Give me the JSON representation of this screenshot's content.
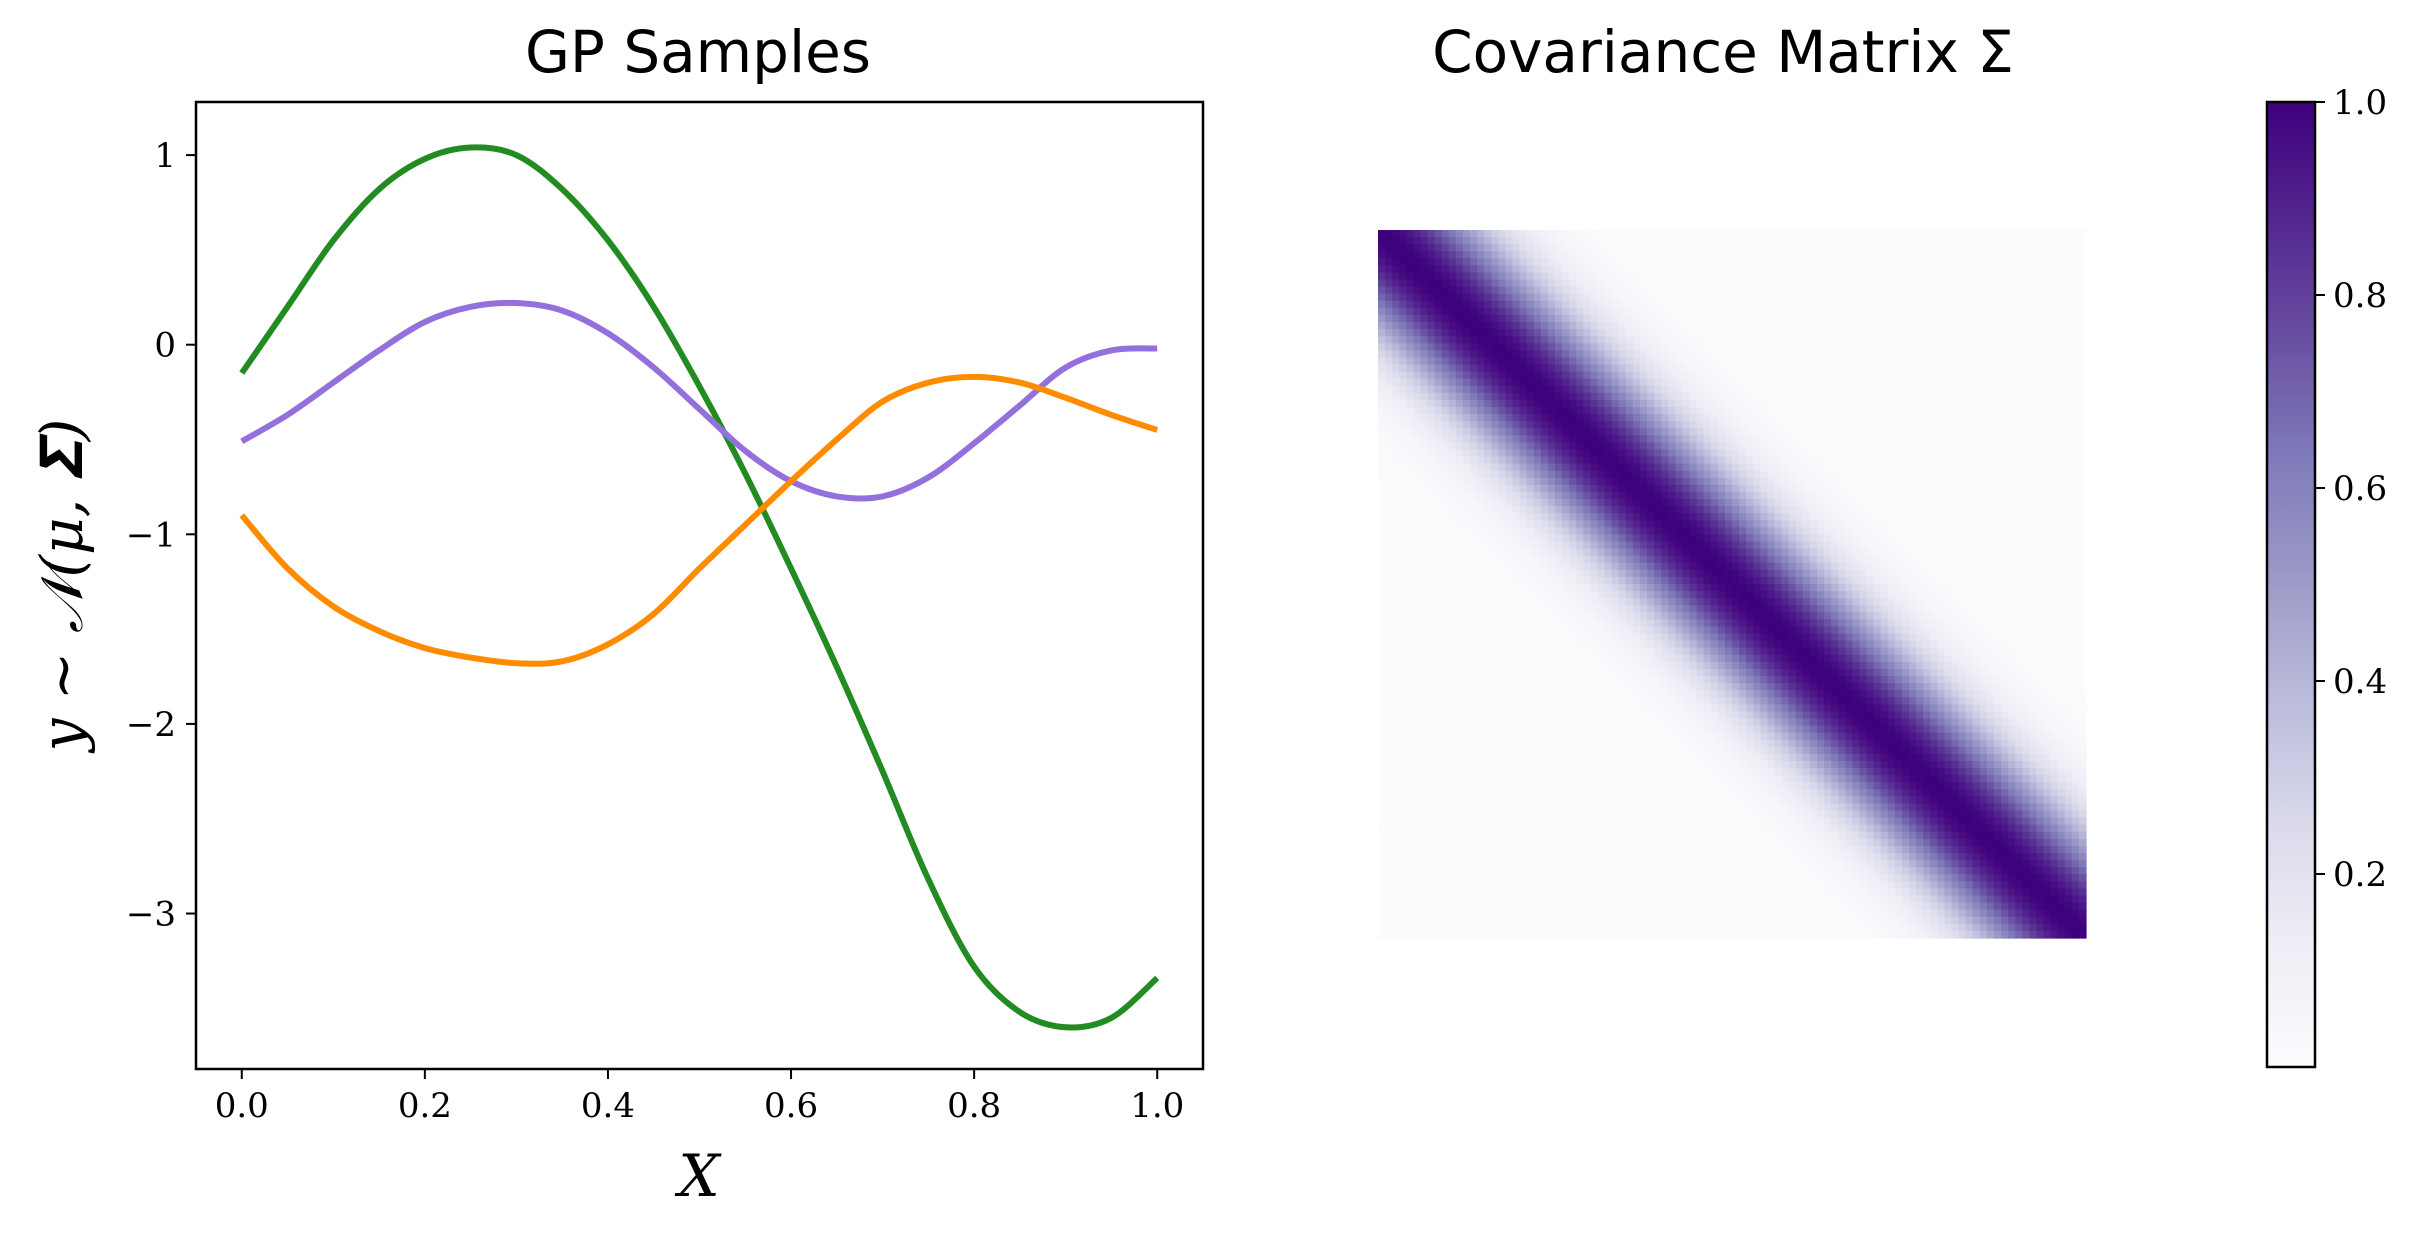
{
  "colors": {
    "sample_1": "#228b22",
    "sample_2": "#9370db",
    "sample_3": "#ff8c00",
    "cmap_low": "#fcfbfd",
    "cmap_high": "#3f007d"
  },
  "chart_data": [
    {
      "type": "line",
      "title": "GP Samples",
      "xlabel": "X",
      "ylabel": "y ∼ 𝒩(μ, 𝚺)",
      "xlim": [
        -0.05,
        1.05
      ],
      "ylim": [
        -3.82,
        1.28
      ],
      "xticks": [
        0.0,
        0.2,
        0.4,
        0.6,
        0.8,
        1.0
      ],
      "xtick_labels": [
        "0.0",
        "0.2",
        "0.4",
        "0.6",
        "0.8",
        "1.0"
      ],
      "yticks": [
        1,
        0,
        -1,
        -2,
        -3
      ],
      "ytick_labels": [
        "1",
        "0",
        "−1",
        "−2",
        "−3"
      ],
      "grid": false,
      "series": [
        {
          "color": "#228b22",
          "x": [
            0.0,
            0.05,
            0.1,
            0.15,
            0.2,
            0.25,
            0.3,
            0.35,
            0.4,
            0.45,
            0.5,
            0.55,
            0.6,
            0.65,
            0.7,
            0.75,
            0.8,
            0.85,
            0.9,
            0.95,
            1.0
          ],
          "y": [
            -0.15,
            0.2,
            0.55,
            0.82,
            0.98,
            1.04,
            1.0,
            0.82,
            0.55,
            0.2,
            -0.22,
            -0.68,
            -1.18,
            -1.7,
            -2.25,
            -2.82,
            -3.28,
            -3.52,
            -3.6,
            -3.55,
            -3.34
          ]
        },
        {
          "color": "#9370db",
          "x": [
            0.0,
            0.05,
            0.1,
            0.15,
            0.2,
            0.25,
            0.3,
            0.35,
            0.4,
            0.45,
            0.5,
            0.55,
            0.6,
            0.65,
            0.7,
            0.75,
            0.8,
            0.85,
            0.9,
            0.95,
            1.0
          ],
          "y": [
            -0.51,
            -0.37,
            -0.2,
            -0.03,
            0.12,
            0.2,
            0.22,
            0.18,
            0.06,
            -0.12,
            -0.34,
            -0.56,
            -0.72,
            -0.8,
            -0.8,
            -0.7,
            -0.52,
            -0.32,
            -0.12,
            -0.03,
            -0.02
          ]
        },
        {
          "color": "#ff8c00",
          "x": [
            0.0,
            0.05,
            0.1,
            0.15,
            0.2,
            0.25,
            0.3,
            0.35,
            0.4,
            0.45,
            0.5,
            0.55,
            0.6,
            0.65,
            0.7,
            0.75,
            0.8,
            0.85,
            0.9,
            0.95,
            1.0
          ],
          "y": [
            -0.9,
            -1.18,
            -1.38,
            -1.51,
            -1.6,
            -1.65,
            -1.68,
            -1.67,
            -1.58,
            -1.42,
            -1.18,
            -0.95,
            -0.72,
            -0.5,
            -0.3,
            -0.2,
            -0.17,
            -0.2,
            -0.28,
            -0.37,
            -0.45
          ]
        }
      ]
    },
    {
      "type": "heatmap",
      "title": "Covariance Matrix Σ",
      "matrix_size": 100,
      "kernel": "squared_exponential",
      "values_range": [
        0.0,
        1.0
      ],
      "axes_visible": false,
      "colormap": "Purples",
      "colorbar": {
        "ticks": [
          1.0,
          0.8,
          0.6,
          0.4,
          0.2
        ],
        "tick_labels": [
          "1.0",
          "0.8",
          "0.6",
          "0.4",
          "0.2"
        ],
        "range": [
          0.0,
          1.0
        ],
        "placement": "right"
      }
    }
  ]
}
